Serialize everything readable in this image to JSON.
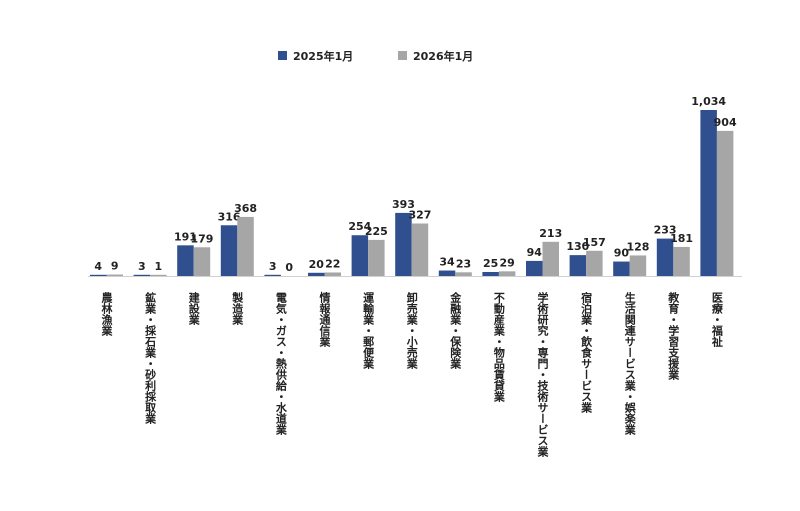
{
  "chart_data": {
    "type": "bar",
    "categories": [
      "農林漁業",
      "鉱業・採石業・砂利採取業",
      "建設業",
      "製造業",
      "電気・ガス・熱供給・水道業",
      "情報通信業",
      "運輸業・郵便業",
      "卸売業・小売業",
      "金融業・保険業",
      "不動産業・物品賃貸業",
      "学術研究・専門・技術サービス業",
      "宿泊業・飲食サービス業",
      "生活関連サービス業・娯楽業",
      "教育・学習支援業",
      "医療・福祉"
    ],
    "series": [
      {
        "name": "2025年1月",
        "color": "#2f4f8f",
        "values": [
          4,
          3,
          191,
          316,
          3,
          20,
          254,
          393,
          34,
          25,
          94,
          130,
          90,
          233,
          1034
        ],
        "labels": [
          "4",
          "3",
          "191",
          "316",
          "3",
          "20",
          "254",
          "393",
          "34",
          "25",
          "94",
          "130",
          "90",
          "233",
          "1,034"
        ]
      },
      {
        "name": "2026年1月",
        "color": "#a6a6a6",
        "values": [
          9,
          1,
          179,
          368,
          0,
          22,
          225,
          327,
          23,
          29,
          213,
          157,
          128,
          181,
          904
        ],
        "labels": [
          "9",
          "1",
          "179",
          "368",
          "0",
          "22",
          "225",
          "327",
          "23",
          "29",
          "213",
          "157",
          "128",
          "181",
          "904"
        ]
      }
    ],
    "ylim": [
      0,
      1034
    ],
    "grid": false,
    "legend_position": "top"
  }
}
